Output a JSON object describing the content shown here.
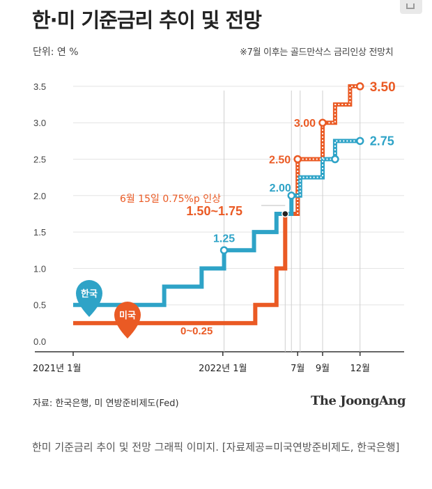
{
  "page": {
    "title": "한·미 기준금리 추이 및 전망",
    "unit": "단위: 연 %",
    "note": "※7월 이후는 골드만삭스 금리인상 전망치",
    "source": "자료: 한국은행, 미 연방준비제도(Fed)",
    "brand": "The JoongAng",
    "caption": "한미 기준금리 추이 및 전망 그래픽 이미지. [자료제공=미국연방준비제도, 한국은행]"
  },
  "colors": {
    "korea": "#2ea3c7",
    "usa": "#ea5a24",
    "grid": "#e3e3e3",
    "axis": "#333333",
    "text": "#333333"
  },
  "chart_data": {
    "type": "line",
    "title": "한·미 기준금리 추이 및 전망",
    "ylabel": "단위: 연 %",
    "ylim": [
      0,
      3.5
    ],
    "yticks": [
      0.0,
      0.5,
      1.0,
      1.5,
      2.0,
      2.5,
      3.0,
      3.5
    ],
    "xticks": [
      {
        "month": 0,
        "label": "2021년 1월"
      },
      {
        "month": 12,
        "label": "2022년 1월"
      },
      {
        "month": 18,
        "label": "7월"
      },
      {
        "month": 20,
        "label": "9월"
      },
      {
        "month": 23,
        "label": "12월"
      }
    ],
    "grid": true,
    "legend": "markers",
    "series": [
      {
        "name": "한국",
        "points": [
          [
            0,
            0.5
          ],
          [
            7.3,
            0.5
          ],
          [
            7.3,
            0.75
          ],
          [
            10.3,
            0.75
          ],
          [
            10.3,
            1.0
          ],
          [
            12.1,
            1.0
          ],
          [
            12.1,
            1.25
          ],
          [
            14.5,
            1.25
          ],
          [
            14.5,
            1.5
          ],
          [
            16.3,
            1.5
          ],
          [
            16.3,
            1.75
          ],
          [
            17.5,
            1.75
          ],
          [
            17.5,
            2.0
          ],
          [
            18.2,
            2.0
          ],
          [
            18.2,
            2.25
          ],
          [
            20,
            2.25
          ],
          [
            20,
            2.5
          ],
          [
            21,
            2.5
          ],
          [
            21,
            2.75
          ],
          [
            23,
            2.75
          ]
        ],
        "labels": [
          {
            "month": 12.1,
            "value": 1.25,
            "text": "1.25"
          },
          {
            "month": 17.5,
            "value": 2.0,
            "text": "2.00"
          },
          {
            "month": 23,
            "value": 2.75,
            "text": "2.75"
          }
        ]
      },
      {
        "name": "미국",
        "points": [
          [
            0,
            0.25
          ],
          [
            14.6,
            0.25
          ],
          [
            14.6,
            0.5
          ],
          [
            16.3,
            0.5
          ],
          [
            16.3,
            0.75
          ],
          [
            16.3,
            1.0
          ],
          [
            17,
            1.0
          ],
          [
            17,
            1.75
          ],
          [
            18,
            1.75
          ],
          [
            18,
            2.5
          ],
          [
            20,
            2.5
          ],
          [
            20,
            3.0
          ],
          [
            21,
            3.0
          ],
          [
            21,
            3.25
          ],
          [
            22.2,
            3.25
          ],
          [
            22.2,
            3.5
          ],
          [
            23,
            3.5
          ]
        ],
        "labels": [
          {
            "month": 9,
            "value": 0.25,
            "text": "0~0.25"
          },
          {
            "month": 17,
            "value": 1.75,
            "text": "1.50~1.75"
          },
          {
            "month": 18,
            "value": 2.5,
            "text": "2.50"
          },
          {
            "month": 20,
            "value": 3.0,
            "text": "3.00"
          },
          {
            "month": 23,
            "value": 3.5,
            "text": "3.50"
          }
        ]
      }
    ],
    "annotations": [
      {
        "month": 17,
        "value": 1.75,
        "text": "6월 15일 0.75%p 인상"
      }
    ]
  }
}
